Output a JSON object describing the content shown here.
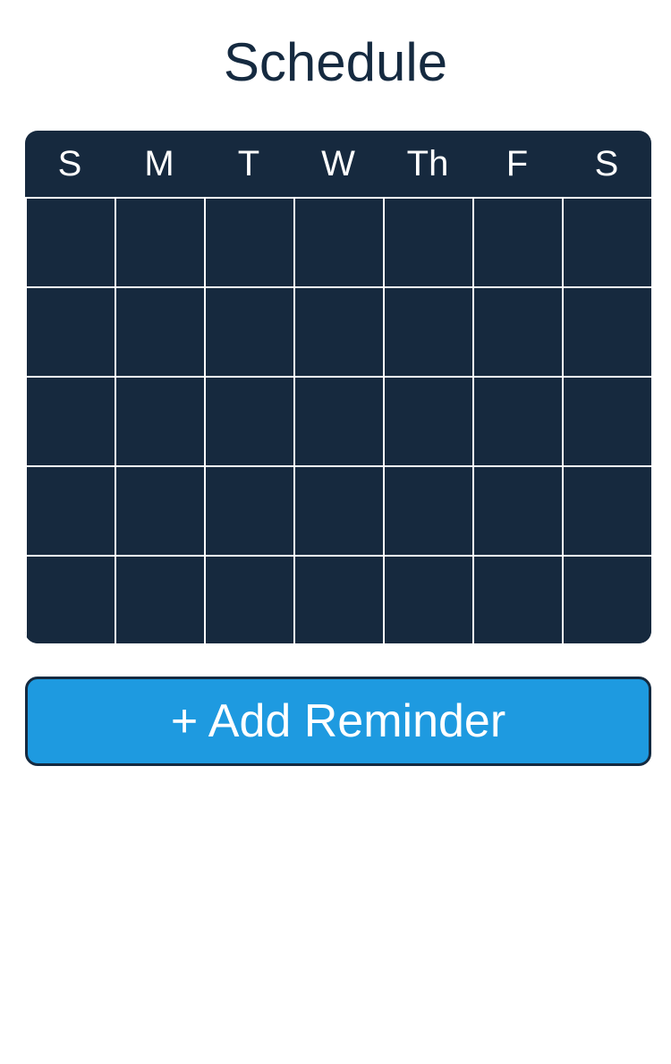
{
  "header": {
    "title": "Schedule"
  },
  "calendar": {
    "weekdays": [
      "S",
      "M",
      "T",
      "W",
      "Th",
      "F",
      "S"
    ],
    "rows": 5
  },
  "actions": {
    "add_reminder_label": "+ Add Reminder"
  },
  "colors": {
    "title": "#152a40",
    "calendar_bg": "#16293e",
    "accent": "#1e9ae0",
    "grid_line": "#ffffff"
  }
}
